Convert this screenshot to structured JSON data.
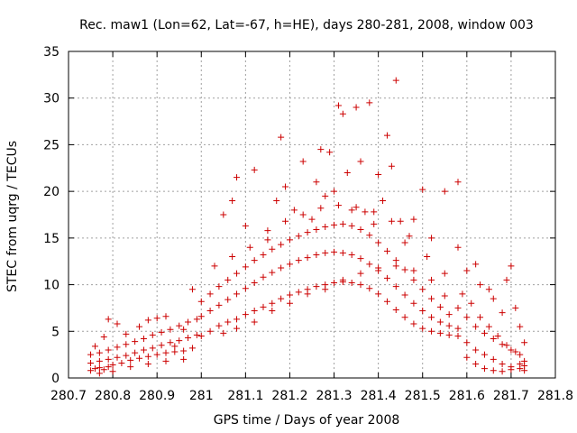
{
  "chart_data": {
    "type": "scatter",
    "title": "Rec. maw1 (Lon=62, Lat=-67, h=HE), days 280-281, 2008, window 003",
    "xlabel": "GPS time / Days of year 2008",
    "ylabel": "STEC from uqrg / TECUs",
    "xlim": [
      280.7,
      281.8
    ],
    "ylim": [
      0,
      35
    ],
    "xticks": [
      280.7,
      280.8,
      280.9,
      281,
      281.1,
      281.2,
      281.3,
      281.4,
      281.5,
      281.6,
      281.7,
      281.8
    ],
    "xtick_labels": [
      "280.7",
      "280.8",
      "280.9",
      "281",
      "281.1",
      "281.2",
      "281.3",
      "281.4",
      "281.5",
      "281.6",
      "281.7",
      "281.8"
    ],
    "yticks": [
      0,
      5,
      10,
      15,
      20,
      25,
      30,
      35
    ],
    "ytick_labels": [
      "0",
      "5",
      "10",
      "15",
      "20",
      "25",
      "30",
      "35"
    ],
    "grid": true,
    "marker": "+",
    "color": "#cc0000",
    "series": [
      {
        "points": [
          [
            280.75,
            0.8
          ],
          [
            280.76,
            1.0
          ],
          [
            280.77,
            1.1
          ],
          [
            280.78,
            0.9
          ],
          [
            280.79,
            1.2
          ],
          [
            280.8,
            1.4
          ],
          [
            280.82,
            1.6
          ],
          [
            280.84,
            1.9
          ],
          [
            280.86,
            2.1
          ],
          [
            280.88,
            2.3
          ],
          [
            280.9,
            2.5
          ],
          [
            280.92,
            2.7
          ],
          [
            280.94,
            2.8
          ],
          [
            280.96,
            2.9
          ],
          [
            280.98,
            3.2
          ],
          [
            280.75,
            1.6
          ],
          [
            280.77,
            1.8
          ],
          [
            280.79,
            2.0
          ],
          [
            280.81,
            2.2
          ],
          [
            280.83,
            2.4
          ],
          [
            280.85,
            2.7
          ],
          [
            280.87,
            3.0
          ],
          [
            280.89,
            3.2
          ],
          [
            280.91,
            3.5
          ],
          [
            280.93,
            3.8
          ],
          [
            280.95,
            4.0
          ],
          [
            280.97,
            4.3
          ],
          [
            280.99,
            4.6
          ],
          [
            280.75,
            2.5
          ],
          [
            280.77,
            2.7
          ],
          [
            280.79,
            3.0
          ],
          [
            280.81,
            3.3
          ],
          [
            280.83,
            3.6
          ],
          [
            280.85,
            3.9
          ],
          [
            280.87,
            4.2
          ],
          [
            280.89,
            4.6
          ],
          [
            280.91,
            4.9
          ],
          [
            280.93,
            5.2
          ],
          [
            280.95,
            5.6
          ],
          [
            280.97,
            6.0
          ],
          [
            280.99,
            6.3
          ],
          [
            280.76,
            3.4
          ],
          [
            280.78,
            4.4
          ],
          [
            280.79,
            6.3
          ],
          [
            280.81,
            5.8
          ],
          [
            280.83,
            4.7
          ],
          [
            280.86,
            5.5
          ],
          [
            280.88,
            6.2
          ],
          [
            280.9,
            6.4
          ],
          [
            280.92,
            6.6
          ],
          [
            280.94,
            3.4
          ],
          [
            280.96,
            5.2
          ],
          [
            280.98,
            9.5
          ],
          [
            280.77,
            0.5
          ],
          [
            280.8,
            0.7
          ],
          [
            280.84,
            1.2
          ],
          [
            280.88,
            1.5
          ],
          [
            280.92,
            1.8
          ],
          [
            280.96,
            2.0
          ],
          [
            281.0,
            4.5
          ],
          [
            281.02,
            5.0
          ],
          [
            281.04,
            5.6
          ],
          [
            281.06,
            6.0
          ],
          [
            281.08,
            6.3
          ],
          [
            281.1,
            6.8
          ],
          [
            281.12,
            7.2
          ],
          [
            281.14,
            7.6
          ],
          [
            281.16,
            8.0
          ],
          [
            281.18,
            8.5
          ],
          [
            281.2,
            8.9
          ],
          [
            281.22,
            9.2
          ],
          [
            281.24,
            9.5
          ],
          [
            281.26,
            9.8
          ],
          [
            281.28,
            10.0
          ],
          [
            281.3,
            10.2
          ],
          [
            281.32,
            10.3
          ],
          [
            281.34,
            10.2
          ],
          [
            281.36,
            10.0
          ],
          [
            281.38,
            9.6
          ],
          [
            281.4,
            9.0
          ],
          [
            281.42,
            8.2
          ],
          [
            281.44,
            7.3
          ],
          [
            281.46,
            6.5
          ],
          [
            281.48,
            5.8
          ],
          [
            281.5,
            5.3
          ],
          [
            281.52,
            5.0
          ],
          [
            281.54,
            4.8
          ],
          [
            281.56,
            4.6
          ],
          [
            281.0,
            6.6
          ],
          [
            281.02,
            7.2
          ],
          [
            281.04,
            7.8
          ],
          [
            281.06,
            8.4
          ],
          [
            281.08,
            9.0
          ],
          [
            281.1,
            9.6
          ],
          [
            281.12,
            10.2
          ],
          [
            281.14,
            10.8
          ],
          [
            281.16,
            11.3
          ],
          [
            281.18,
            11.8
          ],
          [
            281.2,
            12.2
          ],
          [
            281.22,
            12.6
          ],
          [
            281.24,
            12.9
          ],
          [
            281.26,
            13.2
          ],
          [
            281.28,
            13.4
          ],
          [
            281.3,
            13.5
          ],
          [
            281.32,
            13.4
          ],
          [
            281.34,
            13.2
          ],
          [
            281.36,
            12.8
          ],
          [
            281.38,
            12.2
          ],
          [
            281.4,
            11.5
          ],
          [
            281.42,
            10.7
          ],
          [
            281.44,
            9.8
          ],
          [
            281.46,
            8.9
          ],
          [
            281.48,
            8.0
          ],
          [
            281.5,
            7.2
          ],
          [
            281.52,
            6.5
          ],
          [
            281.54,
            6.0
          ],
          [
            281.56,
            5.6
          ],
          [
            281.58,
            5.3
          ],
          [
            281.0,
            8.2
          ],
          [
            281.02,
            9.0
          ],
          [
            281.04,
            9.8
          ],
          [
            281.06,
            10.5
          ],
          [
            281.08,
            11.2
          ],
          [
            281.1,
            11.9
          ],
          [
            281.12,
            12.6
          ],
          [
            281.14,
            13.2
          ],
          [
            281.16,
            13.8
          ],
          [
            281.18,
            14.3
          ],
          [
            281.2,
            14.8
          ],
          [
            281.22,
            15.2
          ],
          [
            281.24,
            15.6
          ],
          [
            281.26,
            15.9
          ],
          [
            281.28,
            16.2
          ],
          [
            281.3,
            16.4
          ],
          [
            281.32,
            16.5
          ],
          [
            281.34,
            16.3
          ],
          [
            281.36,
            15.9
          ],
          [
            281.38,
            15.3
          ],
          [
            281.4,
            14.5
          ],
          [
            281.42,
            13.6
          ],
          [
            281.44,
            12.6
          ],
          [
            281.46,
            11.6
          ],
          [
            281.48,
            10.5
          ],
          [
            281.5,
            9.5
          ],
          [
            281.52,
            8.5
          ],
          [
            281.54,
            7.6
          ],
          [
            281.56,
            6.8
          ],
          [
            281.03,
            12.0
          ],
          [
            281.05,
            17.5
          ],
          [
            281.07,
            19.0
          ],
          [
            281.08,
            21.5
          ],
          [
            281.1,
            16.3
          ],
          [
            281.12,
            22.3
          ],
          [
            281.15,
            14.8
          ],
          [
            281.17,
            19.0
          ],
          [
            281.18,
            25.8
          ],
          [
            281.19,
            20.5
          ],
          [
            281.21,
            18.0
          ],
          [
            281.23,
            23.2
          ],
          [
            281.25,
            17.0
          ],
          [
            281.26,
            21.0
          ],
          [
            281.27,
            24.5
          ],
          [
            281.28,
            19.5
          ],
          [
            281.29,
            24.2
          ],
          [
            281.3,
            20.0
          ],
          [
            281.31,
            29.2
          ],
          [
            281.32,
            28.3
          ],
          [
            281.33,
            22.0
          ],
          [
            281.34,
            18.0
          ],
          [
            281.35,
            29.0
          ],
          [
            281.36,
            23.2
          ],
          [
            281.37,
            17.8
          ],
          [
            281.38,
            29.5
          ],
          [
            281.39,
            16.5
          ],
          [
            281.4,
            21.8
          ],
          [
            281.41,
            19.0
          ],
          [
            281.42,
            26.0
          ],
          [
            281.43,
            22.7
          ],
          [
            281.44,
            31.9
          ],
          [
            281.45,
            16.8
          ],
          [
            281.46,
            14.5
          ],
          [
            281.48,
            17.0
          ],
          [
            281.5,
            20.2
          ],
          [
            281.52,
            15.0
          ],
          [
            281.55,
            20.0
          ],
          [
            281.58,
            21.0
          ],
          [
            281.58,
            14.0
          ],
          [
            281.6,
            11.5
          ],
          [
            281.62,
            12.2
          ],
          [
            281.63,
            10.0
          ],
          [
            281.65,
            9.5
          ],
          [
            281.66,
            8.5
          ],
          [
            281.68,
            7.0
          ],
          [
            281.69,
            10.5
          ],
          [
            281.7,
            12.0
          ],
          [
            281.71,
            7.5
          ],
          [
            281.72,
            5.5
          ],
          [
            281.73,
            3.8
          ],
          [
            281.58,
            7.5
          ],
          [
            281.6,
            6.5
          ],
          [
            281.62,
            5.5
          ],
          [
            281.64,
            4.8
          ],
          [
            281.66,
            4.2
          ],
          [
            281.68,
            3.6
          ],
          [
            281.7,
            3.0
          ],
          [
            281.72,
            2.5
          ],
          [
            281.73,
            1.8
          ],
          [
            281.58,
            4.5
          ],
          [
            281.6,
            3.8
          ],
          [
            281.62,
            3.0
          ],
          [
            281.64,
            2.5
          ],
          [
            281.66,
            2.0
          ],
          [
            281.68,
            1.5
          ],
          [
            281.7,
            1.2
          ],
          [
            281.72,
            1.0
          ],
          [
            281.73,
            0.8
          ],
          [
            281.6,
            2.2
          ],
          [
            281.62,
            1.5
          ],
          [
            281.64,
            1.0
          ],
          [
            281.66,
            0.8
          ],
          [
            281.68,
            0.7
          ],
          [
            281.7,
            0.9
          ],
          [
            281.72,
            1.5
          ],
          [
            281.73,
            1.3
          ],
          [
            281.59,
            9.0
          ],
          [
            281.61,
            8.0
          ],
          [
            281.63,
            6.5
          ],
          [
            281.65,
            5.5
          ],
          [
            281.67,
            4.5
          ],
          [
            281.69,
            3.5
          ],
          [
            281.71,
            2.8
          ],
          [
            281.05,
            4.8
          ],
          [
            281.08,
            5.3
          ],
          [
            281.12,
            6.0
          ],
          [
            281.16,
            7.2
          ],
          [
            281.2,
            8.0
          ],
          [
            281.24,
            9.0
          ],
          [
            281.28,
            9.5
          ],
          [
            281.32,
            10.5
          ],
          [
            281.36,
            11.2
          ],
          [
            281.4,
            11.8
          ],
          [
            281.44,
            12.0
          ],
          [
            281.48,
            11.5
          ],
          [
            281.52,
            10.5
          ],
          [
            281.55,
            8.8
          ],
          [
            281.07,
            13.0
          ],
          [
            281.11,
            14.0
          ],
          [
            281.15,
            15.8
          ],
          [
            281.19,
            16.8
          ],
          [
            281.23,
            17.5
          ],
          [
            281.27,
            18.2
          ],
          [
            281.31,
            18.5
          ],
          [
            281.35,
            18.3
          ],
          [
            281.39,
            17.8
          ],
          [
            281.43,
            16.8
          ],
          [
            281.47,
            15.2
          ],
          [
            281.51,
            13.0
          ],
          [
            281.55,
            11.2
          ]
        ]
      }
    ]
  }
}
